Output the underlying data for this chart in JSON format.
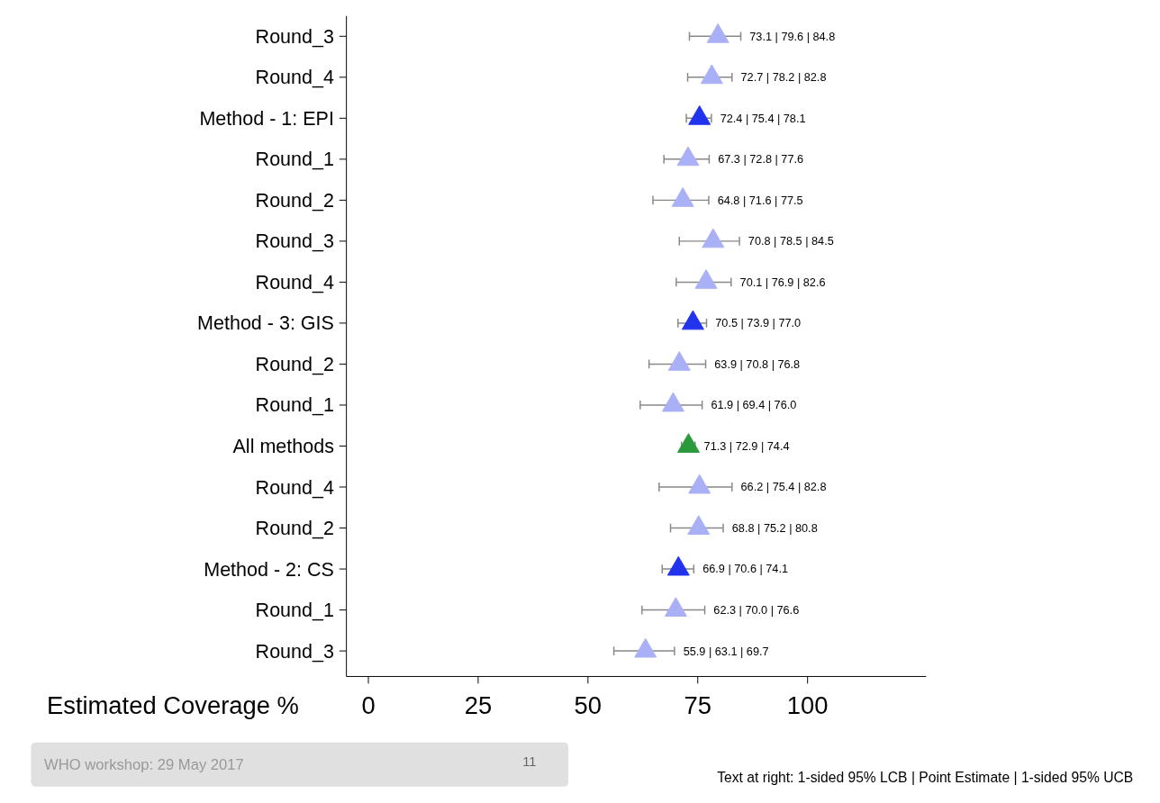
{
  "chart_data": {
    "type": "scatter",
    "orientation": "horizontal",
    "xlabel": "Estimated Coverage %",
    "categories": [
      "Round_3",
      "Round_4",
      "Method - 1: EPI",
      "Round_1",
      "Round_2",
      "Round_3",
      "Round_4",
      "Method - 3: GIS",
      "Round_2",
      "Round_1",
      "All methods",
      "Round_4",
      "Round_2",
      "Method - 2: CS",
      "Round_1",
      "Round_3"
    ],
    "values": [
      79.6,
      78.2,
      75.4,
      72.8,
      71.6,
      78.5,
      76.9,
      73.9,
      70.8,
      69.4,
      72.9,
      75.4,
      75.2,
      70.6,
      70.0,
      63.1
    ],
    "errors": [
      [
        73.1,
        84.8
      ],
      [
        72.7,
        82.8
      ],
      [
        72.4,
        78.1
      ],
      [
        67.3,
        77.6
      ],
      [
        64.8,
        77.5
      ],
      [
        70.8,
        84.5
      ],
      [
        70.1,
        82.6
      ],
      [
        70.5,
        77.0
      ],
      [
        63.9,
        76.8
      ],
      [
        61.9,
        76.0
      ],
      [
        71.3,
        74.4
      ],
      [
        66.2,
        82.8
      ],
      [
        68.8,
        80.8
      ],
      [
        66.9,
        74.1
      ],
      [
        62.3,
        76.6
      ],
      [
        55.9,
        69.7
      ]
    ],
    "value_labels": [
      "73.1 | 79.6 | 84.8",
      "72.7 | 78.2 | 82.8",
      "72.4 | 75.4 | 78.1",
      "67.3 | 72.8 | 77.6",
      "64.8 | 71.6 | 77.5",
      "70.8 | 78.5 | 84.5",
      "70.1 | 76.9 | 82.6",
      "70.5 | 73.9 | 77.0",
      "63.9 | 70.8 | 76.8",
      "61.9 | 69.4 | 76.0",
      "71.3 | 72.9 | 74.4",
      "66.2 | 75.4 | 82.8",
      "68.8 | 75.2 | 80.8",
      "66.9 | 70.6 | 74.1",
      "62.3 | 70.0 | 76.6",
      "55.9 | 63.1 | 69.7"
    ],
    "colors": [
      "#aab0f5",
      "#aab0f5",
      "#2233ee",
      "#aab0f5",
      "#aab0f5",
      "#aab0f5",
      "#aab0f5",
      "#2233ee",
      "#aab0f5",
      "#aab0f5",
      "#2a9a3a",
      "#aab0f5",
      "#aab0f5",
      "#2233ee",
      "#aab0f5",
      "#aab0f5"
    ],
    "marker": "triangle",
    "xlim": [
      -5,
      127
    ],
    "xticks": [
      0,
      25,
      50,
      75,
      100
    ],
    "annotations": [
      "WHO workshop:  29 May 2017",
      "11",
      "Text at right: 1-sided 95% LCB | Point Estimate | 1-sided 95% UCB"
    ]
  }
}
